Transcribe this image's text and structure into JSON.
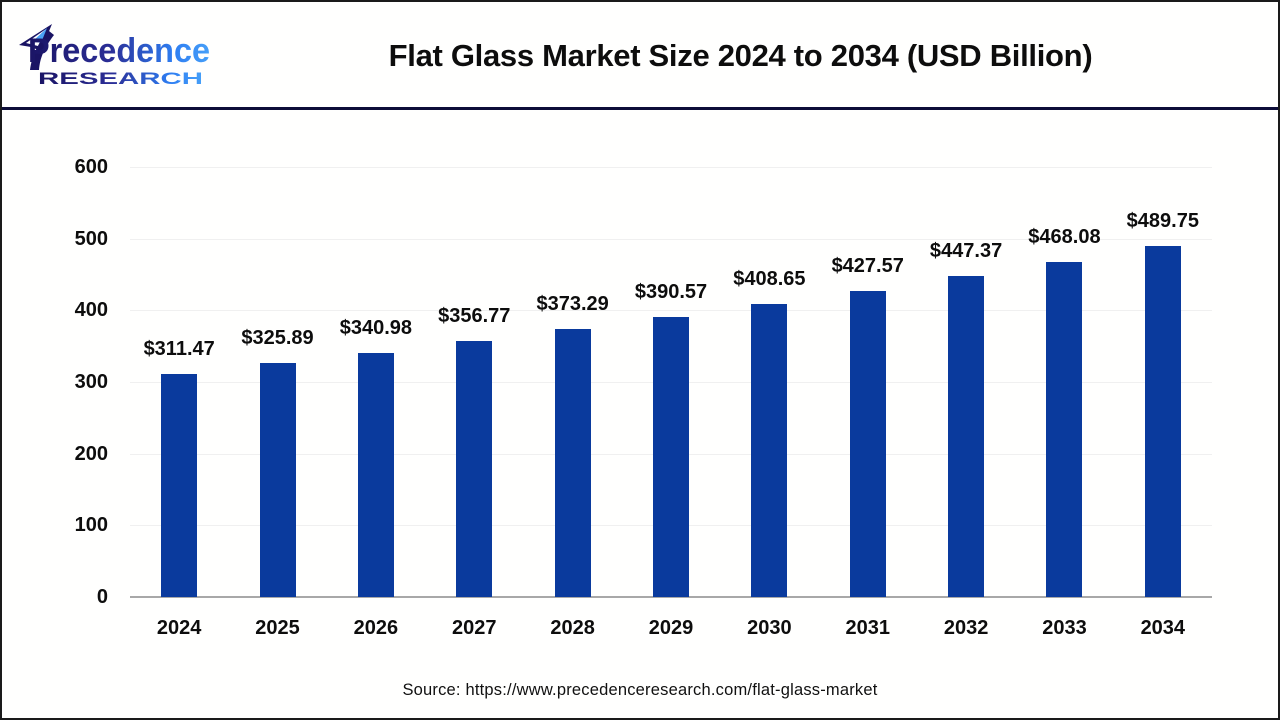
{
  "header": {
    "title": "Flat Glass Market Size 2024 to 2034 (USD Billion)",
    "divider_color": "#0d0d38",
    "logo": {
      "line1": "Precedence",
      "line2": "RESEARCH",
      "navy": "#1a1464",
      "mid": "#2b2e96",
      "blue": "#2e7ef2",
      "light_blue": "#47a0f8",
      "leaf_blue": "#4aa3f7"
    }
  },
  "chart_data": {
    "type": "bar",
    "title": "Flat Glass Market Size 2024 to 2034 (USD Billion)",
    "categories": [
      "2024",
      "2025",
      "2026",
      "2027",
      "2028",
      "2029",
      "2030",
      "2031",
      "2032",
      "2033",
      "2034"
    ],
    "values": [
      311.47,
      325.89,
      340.98,
      356.77,
      373.29,
      390.57,
      408.65,
      427.57,
      447.37,
      468.08,
      489.75
    ],
    "value_labels": [
      "$311.47",
      "$325.89",
      "$340.98",
      "$356.77",
      "$373.29",
      "$390.57",
      "$408.65",
      "$427.57",
      "$447.37",
      "$468.08",
      "$489.75"
    ],
    "ylabel": "",
    "xlabel": "",
    "ylim": [
      0,
      600
    ],
    "yticks": [
      0,
      100,
      200,
      300,
      400,
      500,
      600
    ],
    "grid": true,
    "legend": "none",
    "bar_color": "#0a3a9d",
    "gridline_color": "#f0f0f0",
    "baseline_color": "#a8a8a8",
    "text_color": "#0d0d0d"
  },
  "footer": {
    "source": "Source: https://www.precedenceresearch.com/flat-glass-market"
  }
}
